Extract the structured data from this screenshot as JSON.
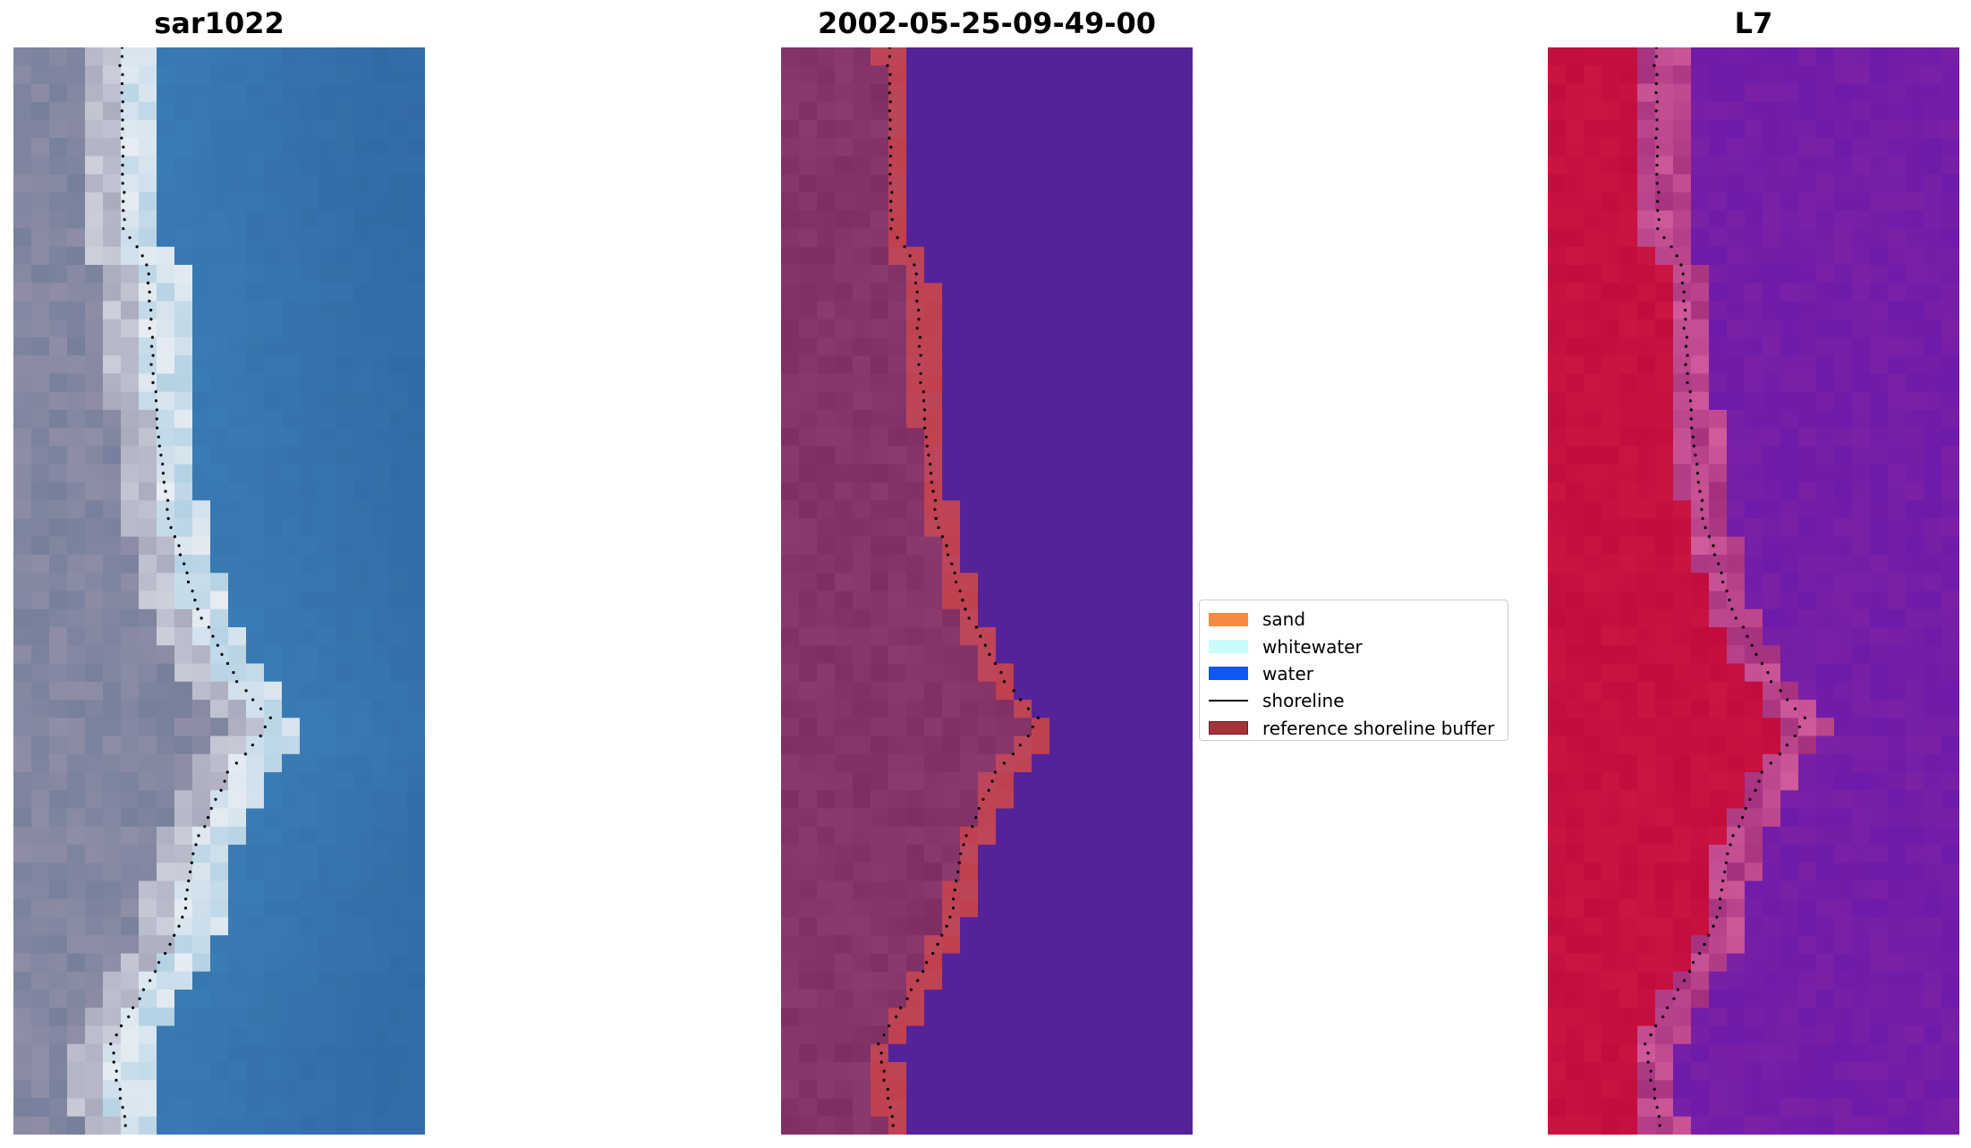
{
  "figure": {
    "panels": [
      {
        "title": "sar1022"
      },
      {
        "title": "2002-05-25-09-49-00"
      },
      {
        "title": "L7"
      }
    ]
  },
  "legend": {
    "items": [
      {
        "label": "sand",
        "color": "#f58a42"
      },
      {
        "label": "whitewater",
        "color": "#c9fcfb"
      },
      {
        "label": "water",
        "color": "#0f57f7"
      },
      {
        "label": "shoreline",
        "color": "#000000"
      },
      {
        "label": "reference shoreline buffer",
        "color": "#a3323a"
      }
    ]
  },
  "colors": {
    "rgb_water": "#3b7fb8",
    "rgb_land": "#8f8ea6",
    "rgb_surf": "#e8edf3",
    "class_water": "#54239a",
    "class_land": "#8c3a6e",
    "buffer": "#c0404e",
    "index_land": "#c20c3c",
    "index_water": "#7a21a6"
  }
}
